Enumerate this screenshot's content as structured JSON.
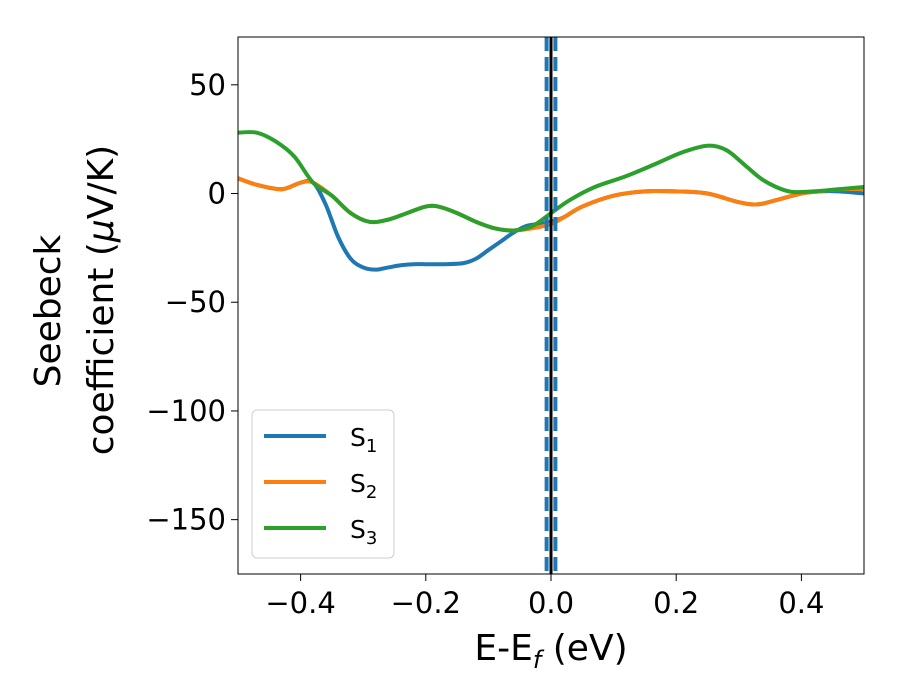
{
  "chart_data": {
    "type": "line",
    "xlabel": "E-E",
    "xlabel_sub": "f",
    "xlabel_unit": " (eV)",
    "ylabel_line1": "Seebeck",
    "ylabel_line2": "coefficient  (",
    "ylabel_mu": "μ",
    "ylabel_unit": "V/K)",
    "xlim": [
      -0.5,
      0.5
    ],
    "ylim": [
      -175,
      72
    ],
    "xticks": [
      -0.4,
      -0.2,
      0.0,
      0.2,
      0.4
    ],
    "xtick_labels": [
      "−0.4",
      "−0.2",
      "0.0",
      "0.2",
      "0.4"
    ],
    "yticks": [
      50,
      0,
      -50,
      -100,
      -150
    ],
    "ytick_labels": [
      "50",
      "0",
      "−50",
      "−100",
      "−150"
    ],
    "legend_position": "lower-left",
    "vlines": [
      {
        "x": 0.0,
        "color": "#000000",
        "style": "solid"
      },
      {
        "x": -0.007,
        "color": "#1f77b4",
        "style": "dashed"
      },
      {
        "x": 0.007,
        "color": "#1f77b4",
        "style": "dashed"
      }
    ],
    "series": [
      {
        "name": "S",
        "sub": "1",
        "color": "#1f77b4",
        "x": [
          -0.5,
          -0.47,
          -0.43,
          -0.4,
          -0.38,
          -0.36,
          -0.34,
          -0.32,
          -0.3,
          -0.28,
          -0.26,
          -0.24,
          -0.22,
          -0.2,
          -0.17,
          -0.14,
          -0.12,
          -0.1,
          -0.08,
          -0.06,
          -0.04,
          -0.02,
          0.0,
          0.02,
          0.05,
          0.1,
          0.15,
          0.2,
          0.25,
          0.3,
          0.33,
          0.36,
          0.4,
          0.43,
          0.46,
          0.5
        ],
        "y": [
          7,
          4,
          2,
          5,
          5,
          -5,
          -20,
          -30,
          -34,
          -35,
          -34,
          -33,
          -32.5,
          -32.5,
          -32.5,
          -32,
          -30,
          -26,
          -22,
          -18,
          -15,
          -14,
          -13,
          -11,
          -6,
          -1,
          1,
          1,
          0,
          -4,
          -5,
          -3,
          0,
          1,
          1,
          0
        ]
      },
      {
        "name": "S",
        "sub": "2",
        "color": "#ff7f0e",
        "x": [
          -0.5,
          -0.47,
          -0.43,
          -0.4,
          -0.38,
          -0.35,
          -0.32,
          -0.29,
          -0.26,
          -0.23,
          -0.2,
          -0.18,
          -0.15,
          -0.12,
          -0.09,
          -0.06,
          -0.03,
          0.0,
          0.02,
          0.05,
          0.1,
          0.15,
          0.2,
          0.25,
          0.3,
          0.33,
          0.36,
          0.4,
          0.43,
          0.46,
          0.5
        ],
        "y": [
          7,
          4,
          2,
          5,
          5,
          -1,
          -9,
          -13,
          -12,
          -9,
          -6,
          -6,
          -9,
          -13,
          -16,
          -17,
          -16,
          -14,
          -11,
          -6,
          -1,
          1,
          1,
          0,
          -4,
          -5,
          -3,
          0,
          1,
          2,
          2
        ]
      },
      {
        "name": "S",
        "sub": "3",
        "color": "#2ca02c",
        "x": [
          -0.5,
          -0.47,
          -0.44,
          -0.41,
          -0.38,
          -0.35,
          -0.32,
          -0.29,
          -0.26,
          -0.23,
          -0.2,
          -0.18,
          -0.15,
          -0.12,
          -0.09,
          -0.06,
          -0.03,
          0.0,
          0.03,
          0.07,
          0.12,
          0.17,
          0.21,
          0.25,
          0.28,
          0.31,
          0.34,
          0.38,
          0.42,
          0.46,
          0.5
        ],
        "y": [
          28,
          28,
          24,
          17,
          5,
          -1,
          -9,
          -13,
          -12,
          -9,
          -6,
          -6,
          -9,
          -13,
          -16,
          -17,
          -15,
          -9,
          -3,
          3,
          8,
          14,
          19,
          22,
          20,
          13,
          6,
          1,
          1,
          2,
          3
        ]
      }
    ]
  }
}
